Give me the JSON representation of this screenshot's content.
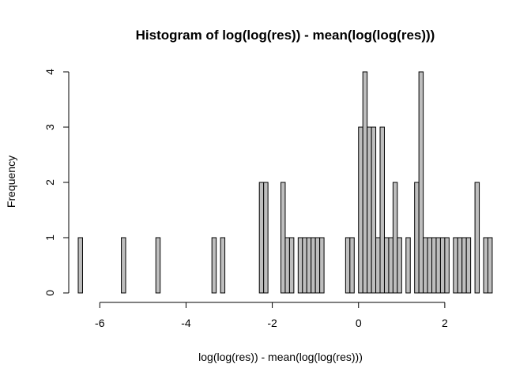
{
  "chart_data": {
    "type": "bar",
    "title": "Histogram of log(log(res)) - mean(log(log(res)))",
    "xlabel": "log(log(res)) - mean(log(log(res)))",
    "ylabel": "Frequency",
    "bin_start": -6.5,
    "bin_width": 0.1,
    "counts": [
      1,
      0,
      0,
      0,
      0,
      0,
      0,
      0,
      0,
      0,
      1,
      0,
      0,
      0,
      0,
      0,
      0,
      0,
      1,
      0,
      0,
      0,
      0,
      0,
      0,
      0,
      0,
      0,
      0,
      0,
      0,
      1,
      0,
      1,
      0,
      0,
      0,
      0,
      0,
      0,
      0,
      0,
      2,
      2,
      0,
      0,
      0,
      2,
      1,
      1,
      0,
      1,
      1,
      1,
      1,
      1,
      1,
      0,
      0,
      0,
      0,
      0,
      1,
      1,
      0,
      3,
      4,
      3,
      3,
      1,
      3,
      1,
      1,
      2,
      1,
      0,
      1,
      0,
      2,
      4,
      1,
      1,
      1,
      1,
      1,
      1,
      0,
      1,
      1,
      1,
      1,
      0,
      2,
      0,
      1,
      1
    ],
    "xlim": [
      -6.5,
      2.9
    ],
    "ylim": [
      0,
      4
    ],
    "x_ticks": [
      -6,
      -4,
      -2,
      0,
      2
    ],
    "x_tick_labels": [
      "-6",
      "-4",
      "-2",
      "0",
      "2"
    ],
    "y_ticks": [
      0,
      1,
      2,
      3,
      4
    ],
    "y_tick_labels": [
      "0",
      "1",
      "2",
      "3",
      "4"
    ],
    "grid": false,
    "colors": {
      "bar_fill": "#bebebe",
      "bar_stroke": "#000000"
    }
  }
}
